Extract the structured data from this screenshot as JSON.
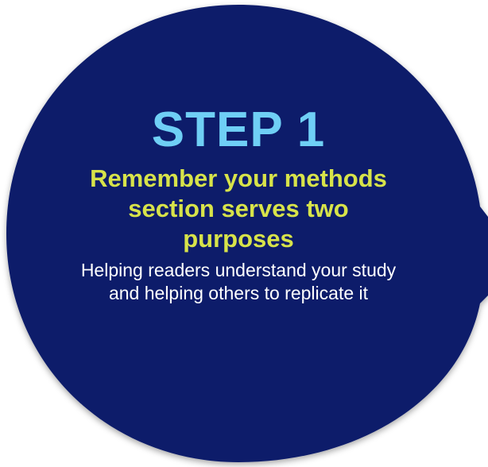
{
  "step": {
    "title": "STEP 1",
    "heading": "Remember your methods section serves two purposes",
    "body": "Helping readers understand your study and helping others to replicate it"
  },
  "colors": {
    "background_shape": "#0c1d6b",
    "title": "#6fcff5",
    "heading": "#d7e34a",
    "body": "#ffffff"
  }
}
